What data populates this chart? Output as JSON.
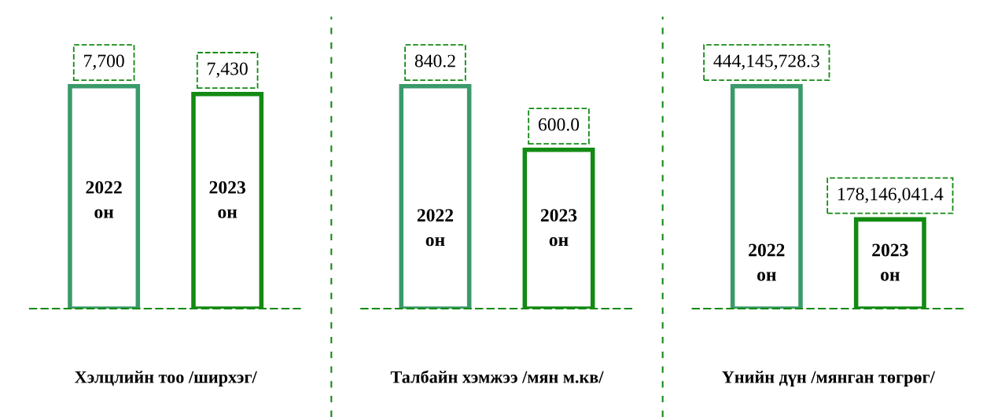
{
  "chart_data": [
    {
      "type": "bar",
      "title": "Хэлцлийн тоо /ширхэг/",
      "categories": [
        "2022 он",
        "2023 он"
      ],
      "values": [
        7700,
        7430
      ],
      "value_labels": [
        "7,700",
        "7,430"
      ],
      "colors": [
        "#3a9a6a",
        "#138a13"
      ],
      "tick_labels": "x"
    },
    {
      "type": "bar",
      "title": "Талбайн хэмжээ /мян м.кв/",
      "categories": [
        "2022 он",
        "2023 он"
      ],
      "values": [
        840.2,
        600.0
      ],
      "value_labels": [
        "840.2",
        "600.0"
      ],
      "colors": [
        "#3a9a6a",
        "#138a13"
      ],
      "tick_labels": "x"
    },
    {
      "type": "bar",
      "title": "Үнийн дүн /мянган төгрөг/",
      "categories": [
        "2022 он",
        "2023 он"
      ],
      "values": [
        444145728.3,
        178146041.4
      ],
      "value_labels": [
        "444,145,728.3",
        "178,146,041.4"
      ],
      "colors": [
        "#3a9a6a",
        "#138a13"
      ],
      "tick_labels": "x"
    }
  ]
}
